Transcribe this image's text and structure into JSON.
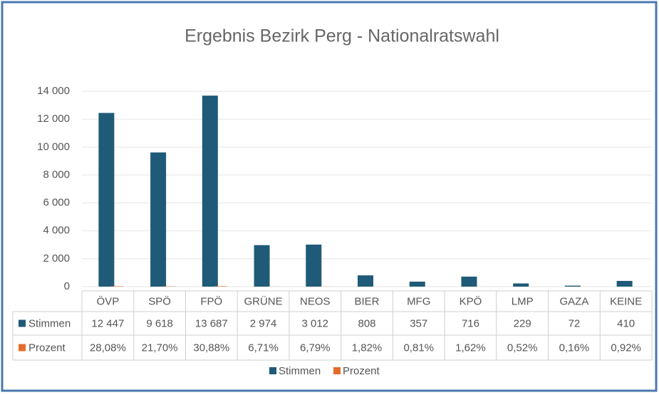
{
  "chart_data": {
    "type": "bar",
    "title": "Ergebnis Bezirk Perg - Nationalratswahl",
    "categories": [
      "ÖVP",
      "SPÖ",
      "FPÖ",
      "GRÜNE",
      "NEOS",
      "BIER",
      "MFG",
      "KPÖ",
      "LMP",
      "GAZA",
      "KEINE"
    ],
    "series": [
      {
        "name": "Stimmen",
        "color": "#1f5b78",
        "values": [
          12447,
          9618,
          13687,
          2974,
          3012,
          808,
          357,
          716,
          229,
          72,
          410
        ],
        "value_labels": [
          "12 447",
          "9 618",
          "13 687",
          "2 974",
          "3 012",
          "808",
          "357",
          "716",
          "229",
          "72",
          "410"
        ]
      },
      {
        "name": "Prozent",
        "color": "#e46c2a",
        "values": [
          28.08,
          21.7,
          30.88,
          6.71,
          6.79,
          1.82,
          0.81,
          1.62,
          0.52,
          0.16,
          0.92
        ],
        "value_labels": [
          "28,08%",
          "21,70%",
          "30,88%",
          "6,71%",
          "6,79%",
          "1,82%",
          "0,81%",
          "1,62%",
          "0,52%",
          "0,16%",
          "0,92%"
        ]
      }
    ],
    "ylim": [
      0,
      14000
    ],
    "yticks": [
      0,
      {
        "value": 2000,
        "label": "2 000"
      },
      {
        "value": 4000,
        "label": "4 000"
      },
      {
        "value": 6000,
        "label": "6 000"
      },
      {
        "value": 8000,
        "label": "8 000"
      },
      {
        "value": 10000,
        "label": "10 000"
      },
      {
        "value": 12000,
        "label": "12 000"
      },
      {
        "value": 14000,
        "label": "14 000"
      }
    ],
    "grid": true,
    "legend": "bottom"
  }
}
